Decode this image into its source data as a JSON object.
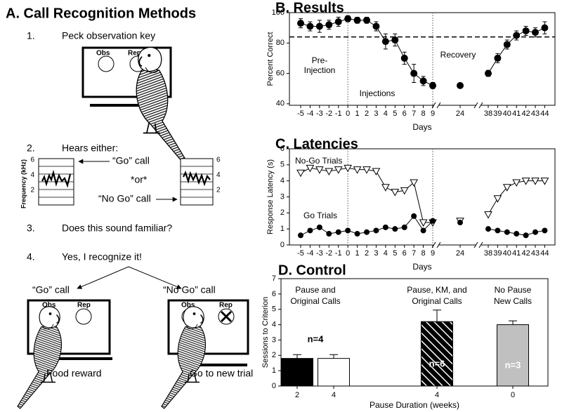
{
  "panel_a": {
    "title": "A.  Call Recognition Methods",
    "step1": {
      "number": "1.",
      "text": "Peck observation key",
      "obs": "Obs",
      "rep": "Rep"
    },
    "step2": {
      "number": "2.",
      "text": "Hears either:",
      "y_label": "Frequency (kHz)",
      "spectrogram_yticks": [
        6,
        4,
        2
      ],
      "go_call": "“Go” call",
      "or": "*or*",
      "no_go_call": "“No Go” call"
    },
    "step3": {
      "number": "3.",
      "text": "Does this sound familiar?"
    },
    "step4": {
      "number": "4.",
      "text": "Yes, I recognize it!",
      "left": {
        "call": "“Go” call",
        "obs": "Obs",
        "rep": "Rep",
        "outcome": "Food reward"
      },
      "right": {
        "call": "“No Go” call",
        "obs": "Obs",
        "rep": "Rep",
        "outcome": "Go to new trial"
      }
    }
  },
  "chart_data": [
    {
      "type": "line",
      "title": "B.  Results",
      "xlabel": "Days",
      "ylabel": "Percent Correct",
      "categories": [
        "-5",
        "-4",
        "-3",
        "-2",
        "-1",
        "0",
        "1",
        "2",
        "3",
        "4",
        "5",
        "6",
        "7",
        "8",
        "9",
        "24",
        "38",
        "39",
        "40",
        "41",
        "42",
        "43",
        "44"
      ],
      "values": [
        93,
        91,
        91,
        92,
        94,
        96,
        95,
        95,
        91,
        81,
        82,
        70,
        60,
        55,
        52,
        52,
        60,
        70,
        79,
        85,
        88,
        87,
        90
      ],
      "errors": [
        3,
        3,
        4,
        3,
        3,
        2,
        2,
        2,
        3,
        5,
        4,
        4,
        6,
        3,
        2,
        1,
        2,
        3,
        3,
        3,
        3,
        3,
        4
      ],
      "color": "#000000",
      "ylim": [
        39,
        100
      ],
      "yticks": [
        40,
        60,
        80,
        100
      ],
      "reference_line": 84,
      "reference_days": [
        "0",
        "9"
      ],
      "annotations": [
        "Pre-",
        "Injection",
        "Injections",
        "Recovery"
      ]
    },
    {
      "type": "line",
      "title": "C.  Latencies",
      "xlabel": "Days",
      "ylabel": "Response Latency (s)",
      "categories": [
        "-5",
        "-4",
        "-3",
        "-2",
        "-1",
        "0",
        "1",
        "2",
        "3",
        "4",
        "5",
        "6",
        "7",
        "8",
        "9",
        "24",
        "38",
        "39",
        "40",
        "41",
        "42",
        "43",
        "44"
      ],
      "series": [
        {
          "name": "No-Go Trials",
          "color": "#000000",
          "marker": "triangle",
          "values": [
            4.5,
            4.8,
            4.7,
            4.6,
            4.7,
            4.8,
            4.7,
            4.7,
            4.6,
            3.6,
            3.3,
            3.4,
            3.9,
            1.4,
            1.4,
            1.5,
            1.9,
            2.9,
            3.6,
            3.9,
            4.0,
            4.0,
            4.0
          ]
        },
        {
          "name": "Go Trials",
          "color": "#000000",
          "marker": "circle",
          "values": [
            0.6,
            0.9,
            1.1,
            0.7,
            0.8,
            0.9,
            0.7,
            0.8,
            0.9,
            1.1,
            1.0,
            1.1,
            1.8,
            0.9,
            1.5,
            1.4,
            1.0,
            0.9,
            0.8,
            0.7,
            0.6,
            0.8,
            0.9
          ]
        }
      ],
      "ylim": [
        0,
        6
      ],
      "yticks": [
        0,
        1,
        2,
        3,
        4,
        5,
        6
      ],
      "reference_days": [
        "0",
        "9"
      ]
    },
    {
      "type": "bar",
      "title": "D.  Control",
      "xlabel": "Pause Duration (weeks)",
      "ylabel": "Sessions to Criterion",
      "categories": [
        "2",
        "4",
        "4",
        "0"
      ],
      "values": [
        1.8,
        1.8,
        4.2,
        4.0
      ],
      "errors": [
        0.25,
        0.25,
        0.75,
        0.25
      ],
      "colors": [
        "#000000",
        "#ffffff",
        "#000000",
        "#c0c0c0"
      ],
      "hatch": [
        false,
        false,
        true,
        false
      ],
      "groups": [
        {
          "label": [
            "Pause and",
            "Original Calls"
          ],
          "n": "n=4"
        },
        {
          "label": [
            "Pause, KM, and",
            "Original Calls"
          ],
          "n": "n=6"
        },
        {
          "label": [
            "No Pause",
            "New Calls"
          ],
          "n": "n=3"
        }
      ],
      "ylim": [
        0,
        7
      ],
      "yticks": [
        0,
        1,
        2,
        3,
        4,
        5,
        6,
        7
      ]
    }
  ]
}
